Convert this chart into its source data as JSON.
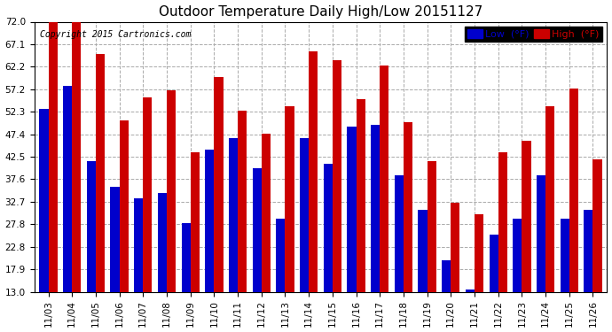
{
  "title": "Outdoor Temperature Daily High/Low 20151127",
  "copyright": "Copyright 2015 Cartronics.com",
  "legend_low": "Low  (°F)",
  "legend_high": "High  (°F)",
  "categories": [
    "11/03",
    "11/04",
    "11/05",
    "11/06",
    "11/07",
    "11/08",
    "11/09",
    "11/10",
    "11/11",
    "11/12",
    "11/13",
    "11/14",
    "11/15",
    "11/16",
    "11/17",
    "11/18",
    "11/19",
    "11/20",
    "11/21",
    "11/22",
    "11/23",
    "11/24",
    "11/25",
    "11/26"
  ],
  "low_values": [
    53.0,
    58.0,
    41.5,
    36.0,
    33.5,
    34.5,
    28.0,
    44.0,
    46.5,
    40.0,
    29.0,
    46.5,
    41.0,
    49.0,
    49.5,
    38.5,
    31.0,
    20.0,
    13.5,
    25.5,
    29.0,
    38.5,
    29.0,
    31.0
  ],
  "high_values": [
    72.0,
    72.0,
    65.0,
    50.5,
    55.5,
    57.0,
    43.5,
    60.0,
    52.5,
    47.5,
    53.5,
    65.5,
    63.5,
    55.0,
    62.5,
    50.0,
    41.5,
    32.5,
    30.0,
    43.5,
    46.0,
    53.5,
    57.5,
    42.0
  ],
  "low_color": "#0000cc",
  "high_color": "#cc0000",
  "bg_color": "#ffffff",
  "plot_bg_color": "#ffffff",
  "grid_color": "#aaaaaa",
  "ymin": 13.0,
  "ymax": 72.0,
  "yticks": [
    13.0,
    17.9,
    22.8,
    27.8,
    32.7,
    37.6,
    42.5,
    47.4,
    52.3,
    57.2,
    62.2,
    67.1,
    72.0
  ],
  "title_fontsize": 11,
  "tick_fontsize": 7.5,
  "legend_fontsize": 8,
  "copyright_fontsize": 7
}
